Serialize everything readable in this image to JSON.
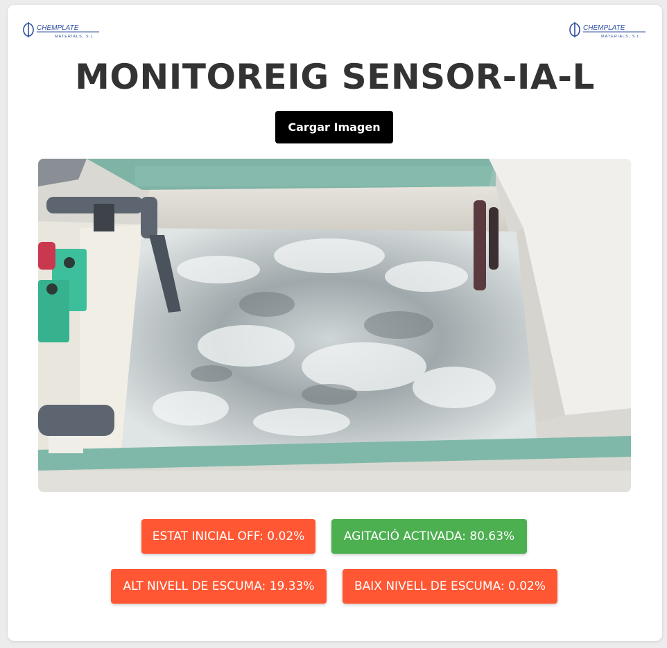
{
  "header": {
    "title": "MONITOREIG SENSOR-IA-L",
    "logo_name": "CHEMPLATE",
    "logo_subtitle": "MATERIALS, S.L."
  },
  "upload": {
    "button_label": "Cargar Imagen"
  },
  "image": {
    "description_icon": "tank-photo"
  },
  "results": [
    {
      "label": "ESTAT INICIAL OFF: 0.02%",
      "color": "#ff5733"
    },
    {
      "label": "AGITACIÓ ACTIVADA: 80.63%",
      "color": "#4caf50"
    },
    {
      "label": "ALT NIVELL DE ESCUMA: 19.33%",
      "color": "#ff5733"
    },
    {
      "label": "BAIX NIVELL DE ESCUMA: 0.02%",
      "color": "#ff5733"
    }
  ]
}
